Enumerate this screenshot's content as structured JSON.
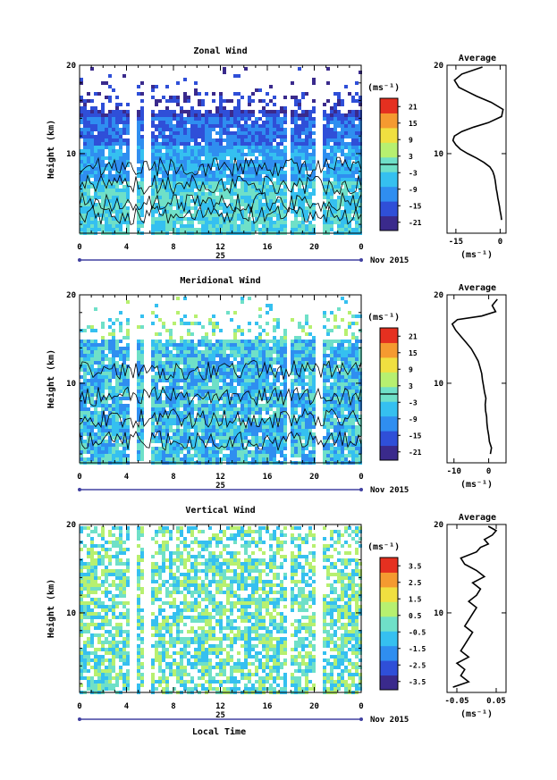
{
  "figure": {
    "xlabel": "Local Time",
    "date_label": "25",
    "month_label": "Nov 2015"
  },
  "chart_data": [
    {
      "type": "heatmap",
      "title": "Zonal Wind",
      "ylabel": "Height (km)",
      "xlim": [
        0,
        24
      ],
      "ylim": [
        1,
        20
      ],
      "x_ticks": [
        "0",
        "4",
        "8",
        "12",
        "16",
        "20",
        "0"
      ],
      "y_ticks": [
        "10",
        "20"
      ],
      "colorbar": {
        "unit": "(ms⁻¹)",
        "range": [
          -24,
          24
        ],
        "ticks": [
          "21",
          "15",
          "9",
          "3",
          "-3",
          "-9",
          "-15",
          "-21"
        ],
        "contour_level": 0
      },
      "data_gaps_hours": [
        4.5,
        5.6,
        17.7,
        20.2
      ],
      "colormap": [
        "#3a2a8c",
        "#2f4fd8",
        "#2f8ef0",
        "#35c0f0",
        "#6fe0c8",
        "#b7f070",
        "#f0e040",
        "#f59a30",
        "#e53020"
      ]
    },
    {
      "type": "line",
      "title": "Average",
      "xlabel": "(ms⁻¹)",
      "xlim": [
        -18,
        2
      ],
      "ylim": [
        1,
        20
      ],
      "x_ticks": [
        "-15",
        "0"
      ],
      "y_ticks": [
        "10",
        "20"
      ],
      "x": [
        0.5,
        0.3,
        0.0,
        -0.2,
        -0.5,
        -0.8,
        -1.0,
        -1.3,
        -1.5,
        -1.7,
        -2.0,
        -2.5,
        -3.5,
        -5.5,
        -8.0,
        -11.0,
        -13.5,
        -15.0,
        -16.0,
        -15.5,
        -13.0,
        -9.0,
        -4.0,
        0.5,
        1.0,
        -3.0,
        -8.0,
        -11.0,
        -14.0,
        -15.5,
        -13.0,
        -6.0
      ],
      "y": [
        2.5,
        3.0,
        3.5,
        4.0,
        4.5,
        5.0,
        5.5,
        6.0,
        6.5,
        7.0,
        7.5,
        8.0,
        8.5,
        9.0,
        9.5,
        10.0,
        10.5,
        11.0,
        11.5,
        12.0,
        12.5,
        13.0,
        13.5,
        14.2,
        15.0,
        15.8,
        16.5,
        17.0,
        17.5,
        18.3,
        19.0,
        19.8
      ]
    },
    {
      "type": "heatmap",
      "title": "Meridional Wind",
      "ylabel": "Height (km)",
      "xlim": [
        0,
        24
      ],
      "ylim": [
        1,
        20
      ],
      "x_ticks": [
        "0",
        "4",
        "8",
        "12",
        "16",
        "20",
        "0"
      ],
      "y_ticks": [
        "10",
        "20"
      ],
      "colorbar": {
        "unit": "(ms⁻¹)",
        "range": [
          -24,
          24
        ],
        "ticks": [
          "21",
          "15",
          "9",
          "3",
          "-3",
          "-9",
          "-15",
          "-21"
        ],
        "contour_level": 0
      },
      "data_gaps_hours": [
        4.5,
        5.6,
        17.7,
        20.2
      ],
      "colormap": [
        "#3a2a8c",
        "#2f4fd8",
        "#2f8ef0",
        "#35c0f0",
        "#6fe0c8",
        "#b7f070",
        "#f0e040",
        "#f59a30",
        "#e53020"
      ]
    },
    {
      "type": "line",
      "title": "Average",
      "xlabel": "(ms⁻¹)",
      "xlim": [
        -12,
        5
      ],
      "ylim": [
        1,
        20
      ],
      "x_ticks": [
        "-10",
        "0"
      ],
      "y_ticks": [
        "10",
        "20"
      ],
      "x": [
        0.5,
        0.8,
        0.2,
        0.0,
        -0.3,
        -0.5,
        -0.6,
        -0.9,
        -1.0,
        -0.8,
        -1.2,
        -1.5,
        -1.8,
        -2.0,
        -2.5,
        -3.0,
        -4.0,
        -5.0,
        -6.5,
        -8.0,
        -9.5,
        -10.5,
        -9.0,
        -2.0,
        2.0,
        1.0,
        2.5
      ],
      "y": [
        2.0,
        2.7,
        3.4,
        4.1,
        4.8,
        5.5,
        6.2,
        6.9,
        7.6,
        8.3,
        9.0,
        9.7,
        10.4,
        11.1,
        11.8,
        12.5,
        13.2,
        13.9,
        14.6,
        15.3,
        16.0,
        16.7,
        17.2,
        17.6,
        18.1,
        18.8,
        19.5
      ]
    },
    {
      "type": "heatmap",
      "title": "Vertical Wind",
      "ylabel": "Height (km)",
      "xlim": [
        0,
        24
      ],
      "ylim": [
        1,
        20
      ],
      "x_ticks": [
        "0",
        "4",
        "8",
        "12",
        "16",
        "20",
        "0"
      ],
      "y_ticks": [
        "10",
        "20"
      ],
      "colorbar": {
        "unit": "(ms⁻¹)",
        "range": [
          -4,
          4
        ],
        "ticks": [
          "3.5",
          "2.5",
          "1.5",
          "0.5",
          "-0.5",
          "-1.5",
          "-2.5",
          "-3.5"
        ]
      },
      "data_gaps_hours": [
        4.5,
        5.6,
        17.7,
        20.2
      ],
      "colormap": [
        "#3a2a8c",
        "#2f4fd8",
        "#2f8ef0",
        "#35c0f0",
        "#6fe0c8",
        "#b7f070",
        "#f0e040",
        "#f59a30",
        "#e53020"
      ]
    },
    {
      "type": "line",
      "title": "Average",
      "xlabel": "(ms⁻¹)",
      "xlim": [
        -0.075,
        0.075
      ],
      "ylim": [
        1,
        20
      ],
      "x_ticks": [
        "-0.05",
        "0.05"
      ],
      "y_ticks": [
        "10",
        "20"
      ],
      "x": [
        -0.06,
        -0.02,
        -0.04,
        -0.03,
        -0.05,
        -0.02,
        -0.04,
        -0.03,
        -0.02,
        -0.01,
        -0.03,
        -0.02,
        -0.01,
        0.0,
        -0.02,
        0.0,
        0.01,
        -0.01,
        0.02,
        0.0,
        -0.03,
        -0.04,
        0.0,
        0.01,
        0.03,
        0.02,
        0.04,
        0.05,
        0.03
      ],
      "y": [
        1.6,
        2.2,
        2.9,
        3.6,
        4.3,
        5.0,
        5.7,
        6.4,
        7.1,
        7.8,
        8.5,
        9.2,
        9.9,
        10.6,
        11.3,
        12.0,
        12.7,
        13.4,
        14.1,
        14.8,
        15.5,
        16.2,
        16.9,
        17.4,
        17.8,
        18.3,
        18.8,
        19.3,
        19.8
      ]
    }
  ]
}
